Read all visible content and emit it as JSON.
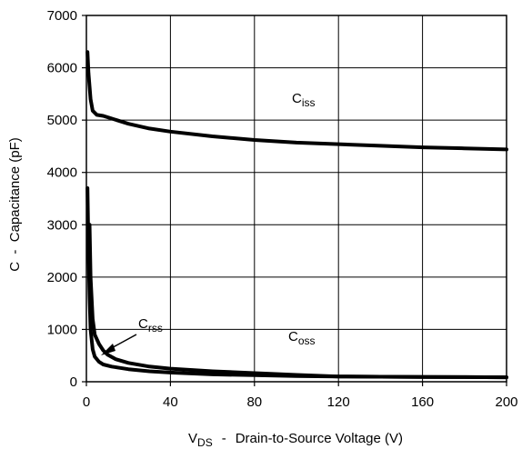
{
  "chart_data": {
    "type": "line",
    "title": "",
    "xlabel": {
      "main": "V",
      "sub": "DS",
      "sep": "-",
      "text": "Drain-to-Source Voltage (V)"
    },
    "ylabel": "C  -  Capacitance (pF)",
    "xlim": [
      0,
      200
    ],
    "ylim": [
      0,
      7000
    ],
    "xticks": [
      0,
      40,
      80,
      120,
      160,
      200
    ],
    "yticks": [
      0,
      1000,
      2000,
      3000,
      4000,
      5000,
      6000,
      7000
    ],
    "grid": true,
    "series": [
      {
        "name": "Ciss",
        "label_main": "C",
        "label_sub": "iss",
        "x": [
          0.5,
          1,
          2,
          3,
          5,
          8,
          12,
          20,
          30,
          40,
          60,
          80,
          100,
          120,
          140,
          160,
          180,
          200
        ],
        "y": [
          6300,
          5900,
          5400,
          5180,
          5100,
          5080,
          5030,
          4930,
          4840,
          4780,
          4690,
          4620,
          4570,
          4540,
          4510,
          4480,
          4460,
          4440
        ]
      },
      {
        "name": "Coss",
        "label_main": "C",
        "label_sub": "oss",
        "x": [
          0.5,
          1,
          1.5,
          2,
          3,
          4,
          6,
          8,
          12,
          20,
          30,
          40,
          60,
          80,
          100,
          120,
          140,
          160,
          180,
          200
        ],
        "y": [
          3700,
          2500,
          1600,
          1000,
          620,
          480,
          380,
          330,
          290,
          240,
          200,
          175,
          140,
          125,
          110,
          100,
          95,
          90,
          88,
          85
        ]
      },
      {
        "name": "Crss",
        "label_main": "C",
        "label_sub": "rss",
        "x": [
          1.5,
          2,
          3,
          4,
          6,
          8,
          10,
          14,
          20,
          30,
          40,
          60,
          80,
          100,
          120,
          140,
          160,
          180,
          200
        ],
        "y": [
          3000,
          2000,
          1200,
          900,
          720,
          600,
          520,
          430,
          360,
          290,
          250,
          200,
          165,
          130,
          100,
          95,
          90,
          88,
          85
        ]
      }
    ]
  }
}
